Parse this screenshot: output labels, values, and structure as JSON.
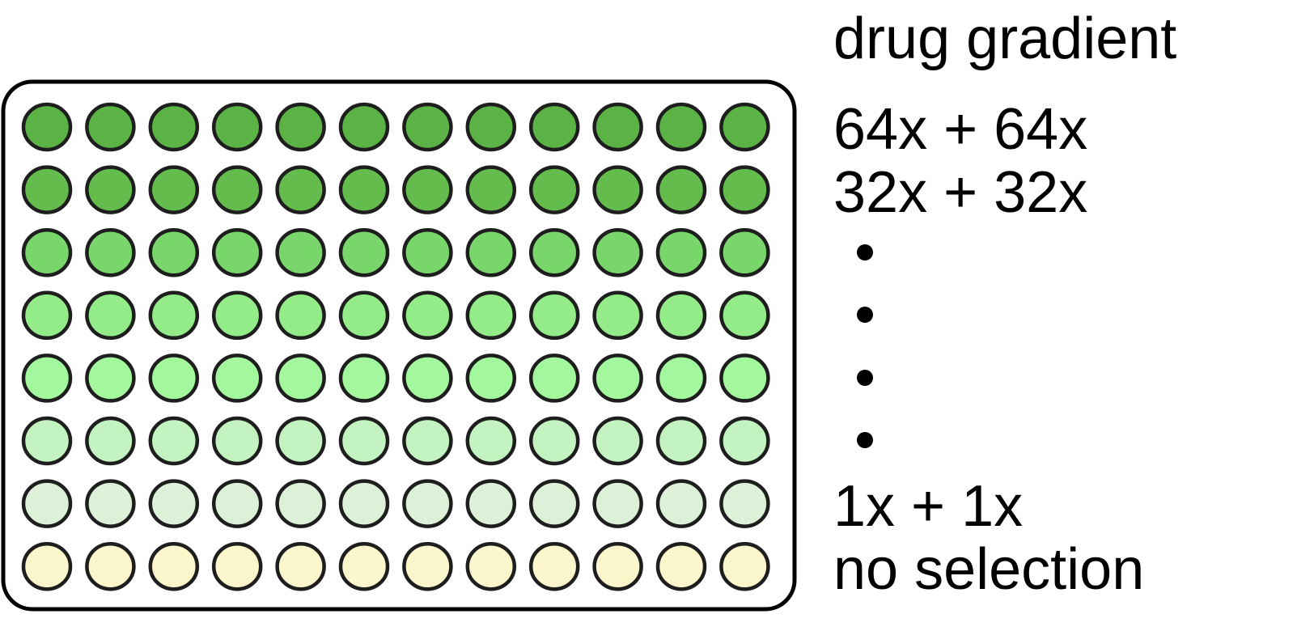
{
  "title": "drug gradient",
  "plate": {
    "rows": 8,
    "columns": 12,
    "row_colors": [
      "#5cb345",
      "#63bc4b",
      "#78d66a",
      "#93ec88",
      "#a3f79c",
      "#c3f3c0",
      "#ddf0d8",
      "#fbf6cc"
    ],
    "outline_color": "#1e1e1e"
  },
  "row_labels": [
    {
      "row": 1,
      "text": "64x + 64x"
    },
    {
      "row": 2,
      "text": "32x + 32x"
    },
    {
      "row": 7,
      "text": "1x + 1x"
    },
    {
      "row": 8,
      "text": "no selection"
    }
  ],
  "ellipsis_dot_rows": [
    3,
    4,
    5,
    6
  ]
}
